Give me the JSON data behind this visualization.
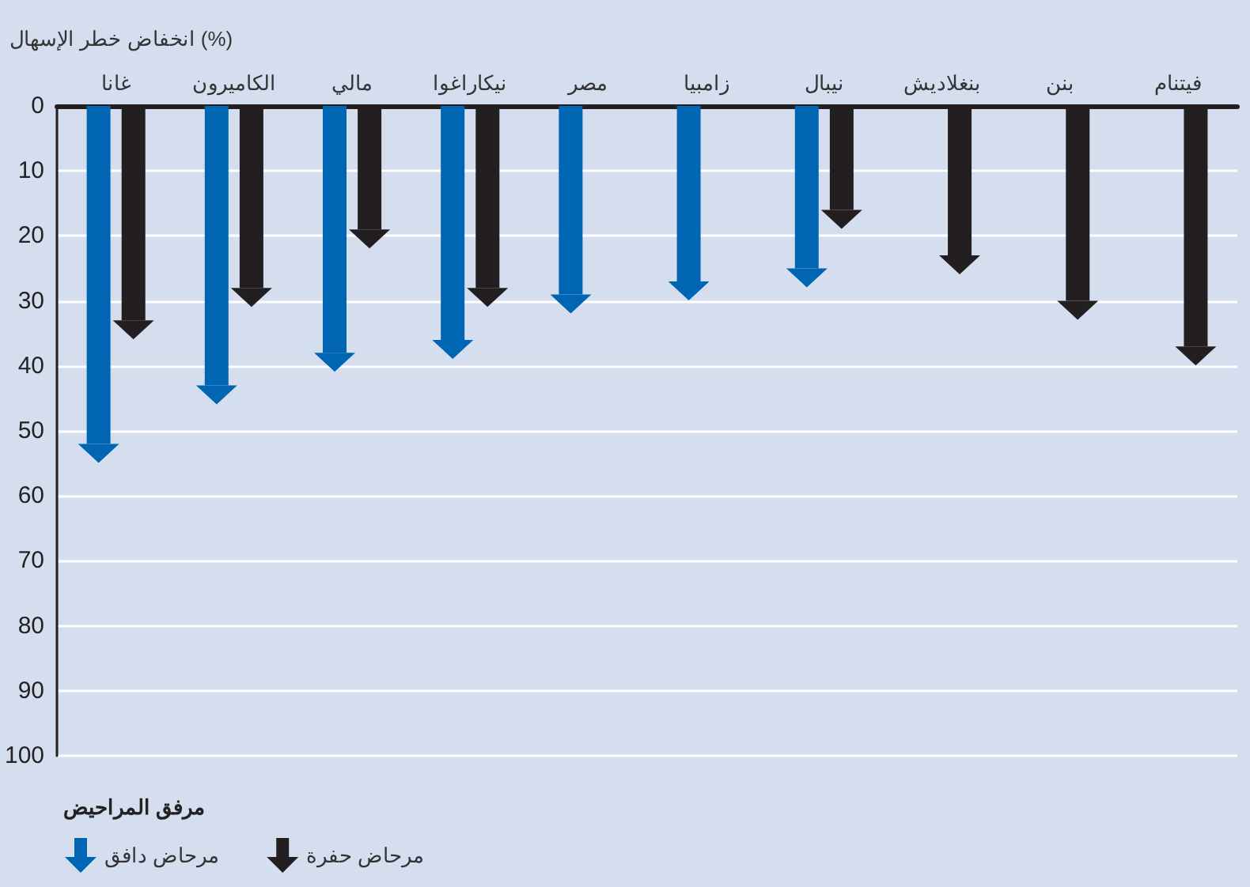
{
  "chart_data": {
    "type": "bar",
    "ylabel": "انخفاض خطر الإسهال (%)",
    "legend_title": "مرفق المراحيض",
    "categories": [
      "غانا",
      "الكاميرون",
      "مالي",
      "نيكاراغوا",
      "مصر",
      "زامبيا",
      "نيبال",
      "بنغلاديش",
      "بنن",
      "فيتنام"
    ],
    "series": [
      {
        "name": "مرحاض دافق",
        "color": "#0066b3",
        "values": [
          52,
          43,
          38,
          36,
          29,
          27,
          25,
          null,
          null,
          null
        ]
      },
      {
        "name": "مرحاض حفرة",
        "color": "#231f20",
        "values": [
          33,
          28,
          19,
          28,
          null,
          null,
          16,
          23,
          30,
          37
        ]
      }
    ],
    "ylim": [
      100,
      0
    ],
    "yticks": [
      0,
      10,
      20,
      30,
      40,
      50,
      60,
      70,
      80,
      90,
      100
    ],
    "grid": "y",
    "legend": "bottom left"
  }
}
